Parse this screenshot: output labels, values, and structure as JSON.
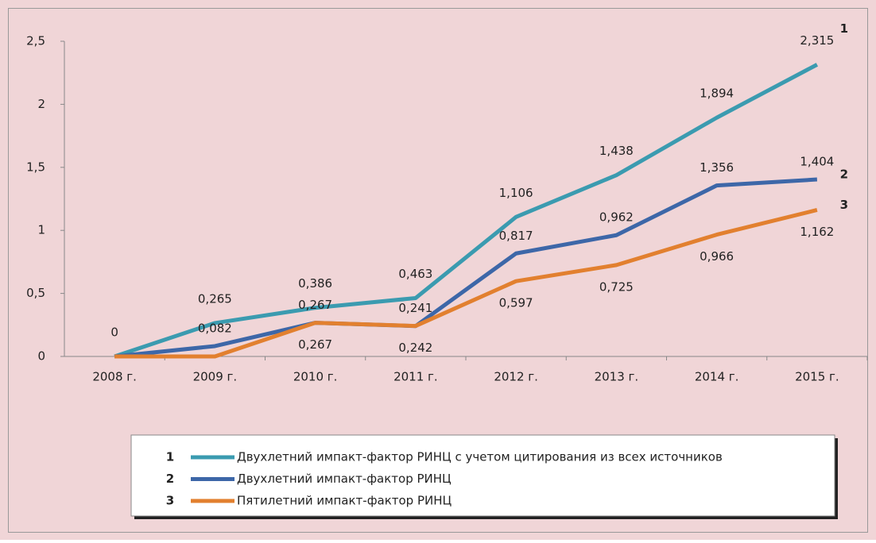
{
  "chart_data": {
    "type": "line",
    "categories": [
      "2008 г.",
      "2009 г.",
      "2010 г.",
      "2011 г.",
      "2012 г.",
      "2013 г.",
      "2014 г.",
      "2015 г."
    ],
    "series": [
      {
        "key": "1",
        "name": "Двухлетний импакт-фактор РИНЦ с учетом цитирования из всех источников",
        "color": "#3b9bb0",
        "values": [
          0,
          0.265,
          0.386,
          0.463,
          1.106,
          1.438,
          1.894,
          2.315
        ],
        "value_labels": [
          "0",
          "0,265",
          "0,386",
          "0,463",
          "1,106",
          "1,438",
          "1,894",
          "2,315"
        ]
      },
      {
        "key": "2",
        "name": "Двухлетний импакт-фактор РИНЦ",
        "color": "#3d67a8",
        "values": [
          0,
          0.082,
          0.267,
          0.241,
          0.817,
          0.962,
          1.356,
          1.404
        ],
        "value_labels": [
          null,
          "0,082",
          "0,267",
          "0,241",
          "0,817",
          "0,962",
          "1,356",
          "1,404"
        ]
      },
      {
        "key": "3",
        "name": "Пятилетний импакт-фактор РИНЦ",
        "color": "#e2802f",
        "values": [
          0,
          0,
          0.267,
          0.242,
          0.597,
          0.725,
          0.966,
          1.162
        ],
        "value_labels": [
          null,
          null,
          "0,267",
          "0,242",
          "0,597",
          "0,725",
          "0,966",
          "1,162"
        ]
      }
    ],
    "ylim": [
      0,
      2.5
    ],
    "yticks": [
      0,
      {
        "value": 0.5,
        "label": "0,5"
      },
      1,
      {
        "value": 1.5,
        "label": "1,5"
      },
      2,
      {
        "value": 2.5,
        "label": "2,5"
      }
    ],
    "grid": false
  }
}
